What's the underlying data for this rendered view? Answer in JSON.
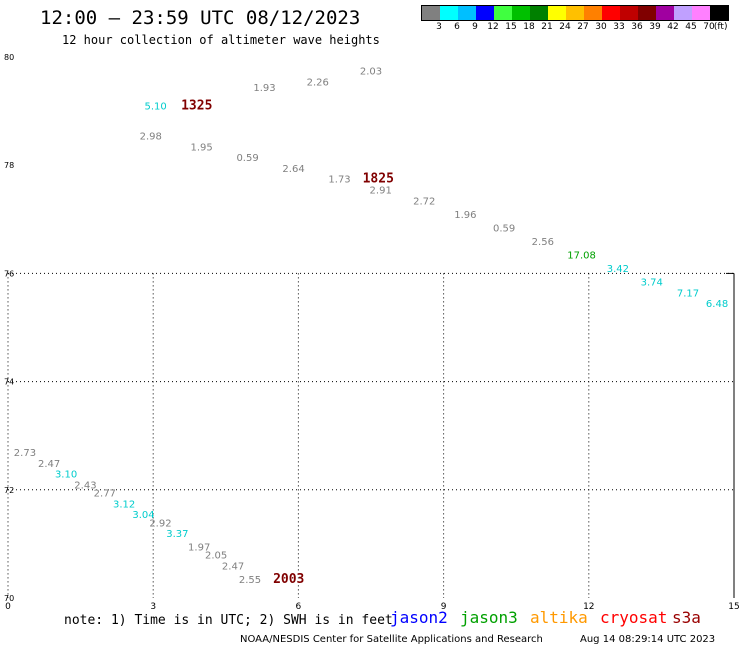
{
  "header": {
    "title": "12:00 – 23:59 UTC 08/12/2023",
    "subtitle": "12 hour collection of altimeter wave heights"
  },
  "legend": {
    "colors": [
      "#808080",
      "#00ffff",
      "#00bfff",
      "#0000ff",
      "#40ff40",
      "#00c000",
      "#008000",
      "#ffff00",
      "#ffc000",
      "#ff8000",
      "#ff0000",
      "#c00000",
      "#800000",
      "#a000a0",
      "#c0a0ff",
      "#ff80ff",
      "#000000"
    ],
    "labels": [
      "3",
      "6",
      "9",
      "12",
      "15",
      "18",
      "21",
      "24",
      "27",
      "30",
      "33",
      "36",
      "39",
      "42",
      "45",
      "70",
      "(ft)"
    ]
  },
  "footer": {
    "note": "note:  1) Time is in UTC;  2) SWH is in feet",
    "missions": [
      {
        "name": "jason2",
        "color": "#0000ff"
      },
      {
        "name": "jason3",
        "color": "#00a000"
      },
      {
        "name": "altika",
        "color": "#ff9900"
      },
      {
        "name": "cryosat",
        "color": "#ff0000"
      },
      {
        "name": "s3a",
        "color": "#990000"
      }
    ],
    "credit": "NOAA/NESDIS Center for Satellite Applications and Research",
    "timestamp": "Aug 14 08:29:14 UTC 2023"
  },
  "chart_data": {
    "type": "scatter",
    "title": "12:00 – 23:59 UTC 08/12/2023",
    "subtitle": "12 hour collection of altimeter wave heights",
    "x_ticks": [
      "0",
      "3",
      "6",
      "9",
      "12",
      "15"
    ],
    "y_ticks": [
      "70",
      "72",
      "74",
      "76",
      "78",
      "80"
    ],
    "xlim": [
      0,
      15
    ],
    "ylim": [
      70,
      80
    ],
    "grid": true,
    "legend_placement": "top-right",
    "tracks": [
      {
        "points": [
          {
            "x": 5.3,
            "y": 79.45,
            "label": "1.93",
            "color": "#808080"
          },
          {
            "x": 6.4,
            "y": 79.55,
            "label": "2.26",
            "color": "#808080"
          },
          {
            "x": 7.5,
            "y": 79.75,
            "label": "2.03",
            "color": "#808080"
          }
        ]
      },
      {
        "points": [
          {
            "x": 3.05,
            "y": 79.1,
            "label": "5.10",
            "color": "#00cccc"
          },
          {
            "x": 3.9,
            "y": 79.1,
            "label": "1325",
            "color": "#800000",
            "time": true
          },
          {
            "x": 2.95,
            "y": 78.55,
            "label": "2.98",
            "color": "#808080"
          },
          {
            "x": 4.0,
            "y": 78.35,
            "label": "1.95",
            "color": "#808080"
          },
          {
            "x": 4.95,
            "y": 78.15,
            "label": "0.59",
            "color": "#808080"
          },
          {
            "x": 5.9,
            "y": 77.95,
            "label": "2.64",
            "color": "#808080"
          },
          {
            "x": 6.85,
            "y": 77.75,
            "label": "1.73",
            "color": "#808080"
          },
          {
            "x": 7.65,
            "y": 77.75,
            "label": "1825",
            "color": "#800000",
            "time": true
          },
          {
            "x": 7.7,
            "y": 77.55,
            "label": "2.91",
            "color": "#808080"
          },
          {
            "x": 8.6,
            "y": 77.35,
            "label": "2.72",
            "color": "#808080"
          },
          {
            "x": 9.45,
            "y": 77.1,
            "label": "1.96",
            "color": "#808080"
          },
          {
            "x": 10.25,
            "y": 76.85,
            "label": "0.59",
            "color": "#808080"
          },
          {
            "x": 11.05,
            "y": 76.6,
            "label": "2.56",
            "color": "#808080"
          },
          {
            "x": 11.85,
            "y": 76.35,
            "label": "17.08",
            "color": "#00a000"
          },
          {
            "x": 12.6,
            "y": 76.1,
            "label": "3.42",
            "color": "#00cccc"
          },
          {
            "x": 13.3,
            "y": 75.85,
            "label": "3.74",
            "color": "#00cccc"
          },
          {
            "x": 14.05,
            "y": 75.65,
            "label": "7.17",
            "color": "#00cccc"
          },
          {
            "x": 14.65,
            "y": 75.45,
            "label": "6.48",
            "color": "#00cccc"
          }
        ]
      },
      {
        "points": [
          {
            "x": 0.35,
            "y": 72.7,
            "label": "2.73",
            "color": "#808080"
          },
          {
            "x": 0.85,
            "y": 72.5,
            "label": "2.47",
            "color": "#808080"
          },
          {
            "x": 1.2,
            "y": 72.3,
            "label": "3.10",
            "color": "#00cccc"
          },
          {
            "x": 1.6,
            "y": 72.1,
            "label": "2.43",
            "color": "#808080"
          },
          {
            "x": 2.0,
            "y": 71.95,
            "label": "2.77",
            "color": "#808080"
          },
          {
            "x": 2.4,
            "y": 71.75,
            "label": "3.12",
            "color": "#00cccc"
          },
          {
            "x": 2.8,
            "y": 71.55,
            "label": "3.04",
            "color": "#00cccc"
          },
          {
            "x": 3.15,
            "y": 71.4,
            "label": "2.92",
            "color": "#808080"
          },
          {
            "x": 3.5,
            "y": 71.2,
            "label": "3.37",
            "color": "#00cccc"
          },
          {
            "x": 3.95,
            "y": 70.95,
            "label": "1.97",
            "color": "#808080"
          },
          {
            "x": 4.3,
            "y": 70.8,
            "label": "2.05",
            "color": "#808080"
          },
          {
            "x": 4.65,
            "y": 70.6,
            "label": "2.47",
            "color": "#808080"
          },
          {
            "x": 5.0,
            "y": 70.35,
            "label": "2.55",
            "color": "#808080"
          },
          {
            "x": 5.8,
            "y": 70.35,
            "label": "2003",
            "color": "#800000",
            "time": true
          }
        ]
      }
    ]
  }
}
